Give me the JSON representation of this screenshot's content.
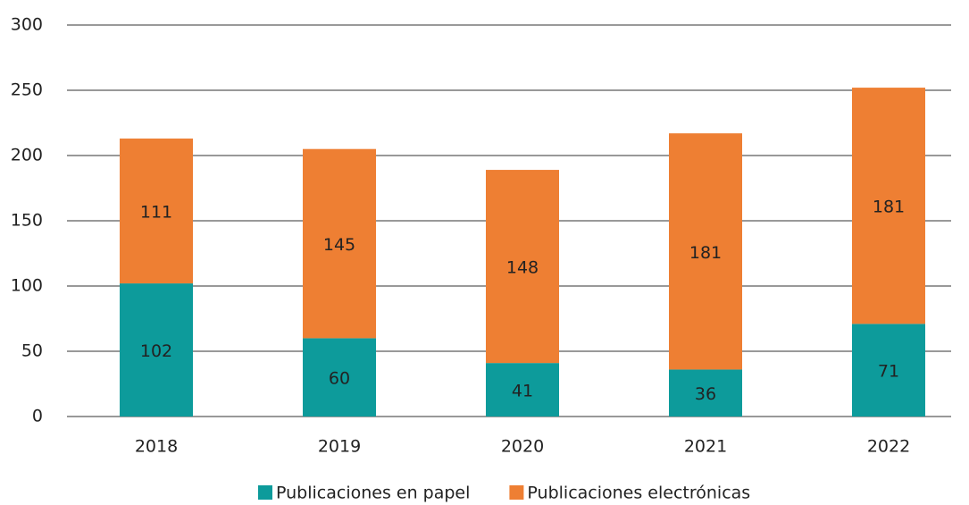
{
  "chart_data": {
    "type": "stacked_bar",
    "categories": [
      "2018",
      "2019",
      "2020",
      "2021",
      "2022"
    ],
    "series": [
      {
        "name": "Publicaciones en papel",
        "color": "#0d9b9b",
        "values": [
          102,
          60,
          41,
          36,
          71
        ]
      },
      {
        "name": "Publicaciones electrónicas",
        "color": "#ee7f33",
        "values": [
          111,
          145,
          148,
          181,
          181
        ]
      }
    ],
    "ylim": [
      0,
      300
    ],
    "yticks": [
      0,
      50,
      100,
      150,
      200,
      250,
      300
    ],
    "grid": true,
    "legend": "bottom"
  }
}
